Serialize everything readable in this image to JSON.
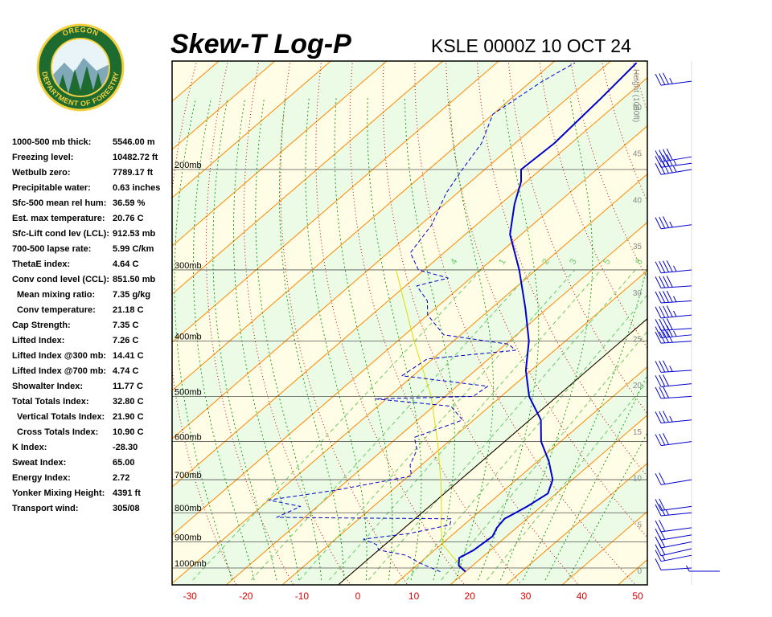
{
  "header": {
    "title": "Skew-T Log-P",
    "station_line": "KSLE 0000Z 10 OCT 24"
  },
  "logo": {
    "top_text": "OREGON",
    "bottom_text": "DEPARTMENT OF FORESTRY",
    "colors": {
      "ring": "#1d6b2f",
      "text": "#f4d03f",
      "center": "#ffffff"
    }
  },
  "stats": [
    {
      "label": "1000-500 mb thick:",
      "value": "5546.00 m",
      "indent": false
    },
    {
      "label": "Freezing level:",
      "value": "10482.72 ft",
      "indent": false
    },
    {
      "label": "Wetbulb zero:",
      "value": "7789.17 ft",
      "indent": false
    },
    {
      "label": "Precipitable water:",
      "value": "0.63 inches",
      "indent": false
    },
    {
      "label": "Sfc-500 mean rel hum:",
      "value": "36.59 %",
      "indent": false
    },
    {
      "label": "Est. max temperature:",
      "value": "20.76 C",
      "indent": false
    },
    {
      "label": "Sfc-Lift cond lev (LCL):",
      "value": "912.53 mb",
      "indent": false
    },
    {
      "label": "700-500 lapse rate:",
      "value": "5.99 C/km",
      "indent": false
    },
    {
      "label": "ThetaE index:",
      "value": "4.64 C",
      "indent": false
    },
    {
      "label": "Conv cond level (CCL):",
      "value": "851.50 mb",
      "indent": false
    },
    {
      "label": "Mean mixing ratio:",
      "value": "7.35 g/kg",
      "indent": true
    },
    {
      "label": "Conv temperature:",
      "value": "21.18 C",
      "indent": true
    },
    {
      "label": "Cap Strength:",
      "value": "7.35 C",
      "indent": false
    },
    {
      "label": "Lifted Index:",
      "value": "7.26 C",
      "indent": false
    },
    {
      "label": "Lifted Index @300 mb:",
      "value": "14.41 C",
      "indent": false
    },
    {
      "label": "Lifted Index @700 mb:",
      "value": "4.74 C",
      "indent": false
    },
    {
      "label": "Showalter Index:",
      "value": "11.77 C",
      "indent": false
    },
    {
      "label": "Total Totals Index:",
      "value": "32.80 C",
      "indent": false
    },
    {
      "label": "Vertical Totals Index:",
      "value": "21.90 C",
      "indent": true
    },
    {
      "label": "Cross Totals Index:",
      "value": "10.90 C",
      "indent": true
    },
    {
      "label": "K Index:",
      "value": "-28.30",
      "indent": false
    },
    {
      "label": "Sweat Index:",
      "value": "65.00",
      "indent": false
    },
    {
      "label": "Energy Index:",
      "value": "2.72",
      "indent": false
    },
    {
      "label": "Yonker Mixing Height:",
      "value": "4391 ft",
      "indent": false
    },
    {
      "label": "Transport wind:",
      "value": "305/08",
      "indent": false
    }
  ],
  "chart_data": {
    "type": "line",
    "xlabel": "",
    "ylabel": "",
    "x_ticks": [
      -30,
      -20,
      -10,
      0,
      10,
      20,
      30,
      40,
      50
    ],
    "x_tick_labels": [
      "-30",
      "-20",
      "-10",
      "0",
      "10",
      "20",
      "30",
      "40",
      "50"
    ],
    "xlim": [
      -32,
      51
    ],
    "pressure_levels": [
      200,
      300,
      400,
      500,
      600,
      700,
      800,
      900,
      1000
    ],
    "pressure_labels": [
      "200mb",
      "300mb",
      "400mb",
      "500mb",
      "600mb",
      "700mb",
      "800mb",
      "900mb",
      "1000mb"
    ],
    "height_axis": {
      "label": "Height (1000ft)",
      "ticks": [
        0,
        5,
        10,
        15,
        20,
        25,
        30,
        35,
        40,
        45,
        50
      ]
    },
    "mixing_ratio_labels": [
      "4",
      "1",
      "2",
      "3",
      "5",
      "8"
    ],
    "colors": {
      "temperature": "#0000cc",
      "dewpoint": "#0000cc",
      "parcel": "#dddd00",
      "isotherm": "#ff8800",
      "dry_adiabat": "#cc0000",
      "moist_adiabat": "#009900",
      "mixing_ratio": "#66cc66",
      "zero_isotherm": "#000000",
      "band_yellow": "#fffde6",
      "band_green": "#ecfbe6"
    },
    "series": [
      {
        "name": "Temperature",
        "style": "solid",
        "points": [
          {
            "p": 1015,
            "t": 20.0
          },
          {
            "p": 990,
            "t": 17.5
          },
          {
            "p": 960,
            "t": 16.0
          },
          {
            "p": 930,
            "t": 17.0
          },
          {
            "p": 880,
            "t": 17.5
          },
          {
            "p": 850,
            "t": 16.5
          },
          {
            "p": 820,
            "t": 16.0
          },
          {
            "p": 780,
            "t": 17.5
          },
          {
            "p": 740,
            "t": 18.5
          },
          {
            "p": 700,
            "t": 16.5
          },
          {
            "p": 650,
            "t": 12.0
          },
          {
            "p": 600,
            "t": 6.5
          },
          {
            "p": 550,
            "t": 2.0
          },
          {
            "p": 500,
            "t": -5.0
          },
          {
            "p": 450,
            "t": -11.0
          },
          {
            "p": 400,
            "t": -16.5
          },
          {
            "p": 350,
            "t": -24.0
          },
          {
            "p": 300,
            "t": -33.0
          },
          {
            "p": 260,
            "t": -42.0
          },
          {
            "p": 230,
            "t": -47.5
          },
          {
            "p": 210,
            "t": -51.0
          },
          {
            "p": 200,
            "t": -53.5
          },
          {
            "p": 180,
            "t": -53.0
          },
          {
            "p": 150,
            "t": -54.0
          },
          {
            "p": 130,
            "t": -55.0
          }
        ]
      },
      {
        "name": "Dewpoint",
        "style": "dashed",
        "points": [
          {
            "p": 1015,
            "t": 15.5
          },
          {
            "p": 980,
            "t": 10.0
          },
          {
            "p": 950,
            "t": 6.0
          },
          {
            "p": 930,
            "t": 0.0
          },
          {
            "p": 910,
            "t": -1.5
          },
          {
            "p": 890,
            "t": -5.0
          },
          {
            "p": 870,
            "t": 2.0
          },
          {
            "p": 840,
            "t": 7.5
          },
          {
            "p": 820,
            "t": 6.5
          },
          {
            "p": 815,
            "t": -25.0
          },
          {
            "p": 780,
            "t": -23.0
          },
          {
            "p": 760,
            "t": -30.0
          },
          {
            "p": 730,
            "t": -20.0
          },
          {
            "p": 690,
            "t": -9.5
          },
          {
            "p": 660,
            "t": -12.0
          },
          {
            "p": 620,
            "t": -14.0
          },
          {
            "p": 590,
            "t": -17.0
          },
          {
            "p": 550,
            "t": -12.0
          },
          {
            "p": 520,
            "t": -17.0
          },
          {
            "p": 505,
            "t": -32.0
          },
          {
            "p": 500,
            "t": -15.0
          },
          {
            "p": 480,
            "t": -14.5
          },
          {
            "p": 460,
            "t": -32.0
          },
          {
            "p": 430,
            "t": -31.0
          },
          {
            "p": 415,
            "t": -17.0
          },
          {
            "p": 405,
            "t": -19.5
          },
          {
            "p": 390,
            "t": -33.0
          },
          {
            "p": 360,
            "t": -40.0
          },
          {
            "p": 340,
            "t": -43.0
          },
          {
            "p": 320,
            "t": -48.0
          },
          {
            "p": 310,
            "t": -44.0
          },
          {
            "p": 300,
            "t": -51.0
          },
          {
            "p": 280,
            "t": -56.0
          },
          {
            "p": 250,
            "t": -58.0
          },
          {
            "p": 220,
            "t": -62.0
          },
          {
            "p": 200,
            "t": -64.0
          },
          {
            "p": 180,
            "t": -66.0
          },
          {
            "p": 160,
            "t": -70.0
          },
          {
            "p": 140,
            "t": -68.0
          },
          {
            "p": 130,
            "t": -66.0
          }
        ]
      },
      {
        "name": "Parcel",
        "style": "solid",
        "points": [
          {
            "p": 1015,
            "t": 20.0
          },
          {
            "p": 912,
            "t": 10.5
          },
          {
            "p": 850,
            "t": 6.5
          },
          {
            "p": 800,
            "t": 3.5
          },
          {
            "p": 700,
            "t": -3.5
          },
          {
            "p": 600,
            "t": -12.0
          },
          {
            "p": 500,
            "t": -22.5
          },
          {
            "p": 400,
            "t": -37.0
          },
          {
            "p": 300,
            "t": -55.0
          }
        ]
      }
    ],
    "wind_barbs": [
      {
        "p": 1015,
        "speed_kt": 5,
        "dir_deg": 270
      },
      {
        "p": 1000,
        "speed_kt": 10,
        "dir_deg": 280
      },
      {
        "p": 950,
        "speed_kt": 15,
        "dir_deg": 300
      },
      {
        "p": 925,
        "speed_kt": 20,
        "dir_deg": 305
      },
      {
        "p": 900,
        "speed_kt": 20,
        "dir_deg": 300
      },
      {
        "p": 875,
        "speed_kt": 20,
        "dir_deg": 295
      },
      {
        "p": 850,
        "speed_kt": 20,
        "dir_deg": 290
      },
      {
        "p": 800,
        "speed_kt": 25,
        "dir_deg": 285
      },
      {
        "p": 780,
        "speed_kt": 20,
        "dir_deg": 290
      },
      {
        "p": 700,
        "speed_kt": 20,
        "dir_deg": 295
      },
      {
        "p": 600,
        "speed_kt": 30,
        "dir_deg": 290
      },
      {
        "p": 550,
        "speed_kt": 35,
        "dir_deg": 285
      },
      {
        "p": 500,
        "speed_kt": 30,
        "dir_deg": 280
      },
      {
        "p": 475,
        "speed_kt": 30,
        "dir_deg": 285
      },
      {
        "p": 450,
        "speed_kt": 35,
        "dir_deg": 280
      },
      {
        "p": 400,
        "speed_kt": 40,
        "dir_deg": 280
      },
      {
        "p": 390,
        "speed_kt": 45,
        "dir_deg": 285
      },
      {
        "p": 380,
        "speed_kt": 40,
        "dir_deg": 280
      },
      {
        "p": 360,
        "speed_kt": 45,
        "dir_deg": 285
      },
      {
        "p": 340,
        "speed_kt": 45,
        "dir_deg": 280
      },
      {
        "p": 320,
        "speed_kt": 40,
        "dir_deg": 280
      },
      {
        "p": 300,
        "speed_kt": 45,
        "dir_deg": 285
      },
      {
        "p": 250,
        "speed_kt": 35,
        "dir_deg": 290
      },
      {
        "p": 200,
        "speed_kt": 45,
        "dir_deg": 295
      },
      {
        "p": 195,
        "speed_kt": 45,
        "dir_deg": 290
      },
      {
        "p": 190,
        "speed_kt": 40,
        "dir_deg": 295
      },
      {
        "p": 140,
        "speed_kt": 35,
        "dir_deg": 290
      }
    ]
  }
}
